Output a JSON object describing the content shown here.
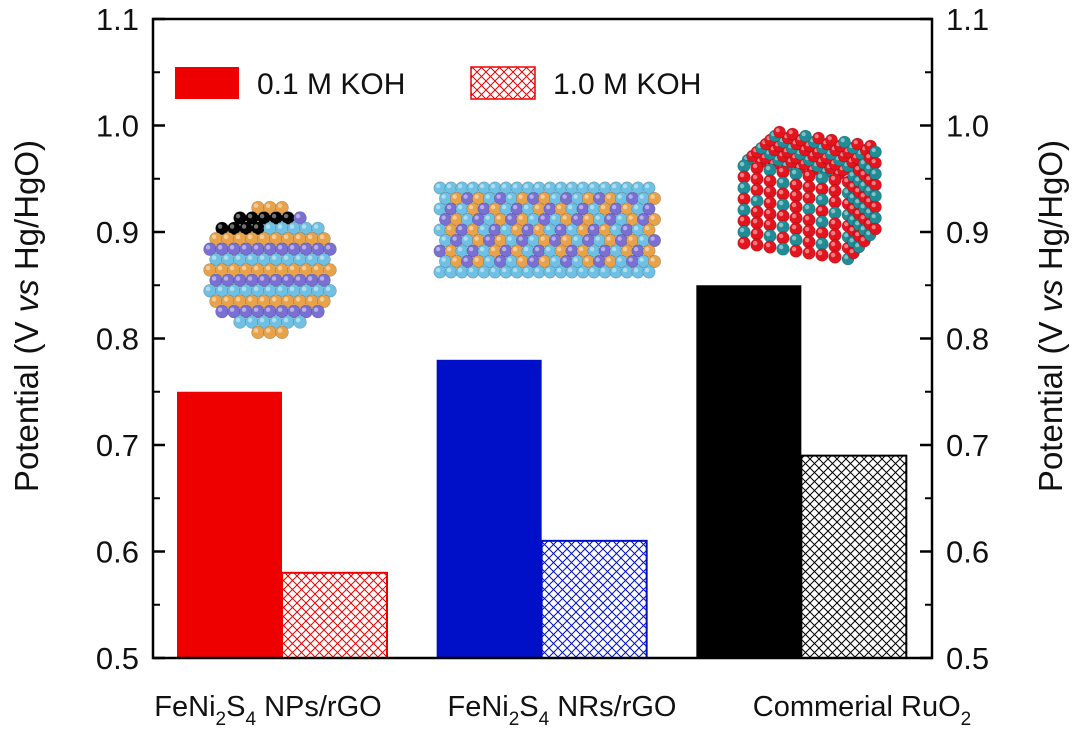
{
  "chart_data": {
    "type": "bar",
    "categories": [
      {
        "label": "FeNi2S4 NPs/rGO",
        "parts": [
          [
            "FeNi",
            ""
          ],
          [
            "2",
            "sub"
          ],
          [
            "S",
            ""
          ],
          [
            "4",
            "sub"
          ],
          [
            " NPs/rGO",
            ""
          ]
        ]
      },
      {
        "label": "FeNi2S4 NRs/rGO",
        "parts": [
          [
            "FeNi",
            ""
          ],
          [
            "2",
            "sub"
          ],
          [
            "S",
            ""
          ],
          [
            "4",
            "sub"
          ],
          [
            " NRs/rGO",
            ""
          ]
        ]
      },
      {
        "label": "Commerial RuO2",
        "parts": [
          [
            "Commerial RuO",
            ""
          ],
          [
            "2",
            "sub"
          ]
        ]
      }
    ],
    "series": [
      {
        "name": "0.1 M KOH",
        "values": [
          0.75,
          0.78,
          0.85
        ],
        "style": "solid"
      },
      {
        "name": "1.0 M KOH",
        "values": [
          0.58,
          0.61,
          0.69
        ],
        "style": "hatched"
      }
    ],
    "bar_colors": [
      "#ee0000",
      "#0010c8",
      "#000000"
    ],
    "ylim": [
      0.5,
      1.1
    ],
    "yticks": [
      "0.5",
      "0.6",
      "0.7",
      "0.8",
      "0.9",
      "1.0",
      "1.1"
    ],
    "ylabel_parts": [
      [
        "Potential (V ",
        ""
      ],
      [
        "vs",
        "italic"
      ],
      [
        " Hg/HgO)",
        ""
      ]
    ],
    "legend_position": "top-left",
    "grid": false,
    "insets": [
      "nanoparticle-model-icon",
      "nanorod-model-icon",
      "ruo2-crystal-model-icon"
    ]
  }
}
